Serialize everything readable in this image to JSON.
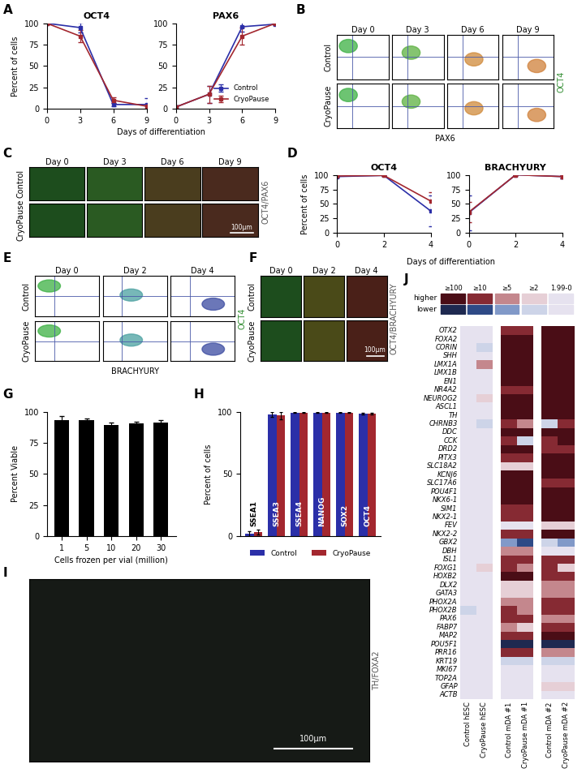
{
  "chart_data": [
    {
      "panel": "A",
      "type": "line",
      "xlabel": "Days of differentiation",
      "ylabel": "Percent of cells",
      "legend": "lower right",
      "series": [
        {
          "name": "Control",
          "color": "#2b2fa8",
          "marker": "square"
        },
        {
          "name": "CryoPause",
          "color": "#a3272f",
          "marker": "square"
        }
      ],
      "charts": [
        {
          "title": "OCT4",
          "x": [
            0,
            3,
            6,
            9
          ],
          "xlim": [
            0,
            9
          ],
          "xticks": [
            0,
            3,
            6,
            9
          ],
          "ylim": [
            0,
            100
          ],
          "yticks": [
            0,
            25,
            50,
            75,
            100
          ],
          "values": [
            [
              100,
              95,
              5,
              5
            ],
            [
              100,
              85,
              10,
              3
            ]
          ],
          "errors": [
            [
              1,
              6,
              2,
              7
            ],
            [
              1,
              7,
              3,
              3
            ]
          ]
        },
        {
          "title": "PAX6",
          "x": [
            0,
            3,
            6,
            9
          ],
          "xlim": [
            0,
            9
          ],
          "xticks": [
            0,
            3,
            6,
            9
          ],
          "ylim": [
            0,
            100
          ],
          "yticks": [
            0,
            25,
            50,
            75,
            100
          ],
          "values": [
            [
              2,
              17,
              96,
              99
            ],
            [
              2,
              17,
              85,
              100
            ]
          ],
          "errors": [
            [
              2,
              10,
              6,
              1
            ],
            [
              2,
              10,
              10,
              1
            ]
          ]
        }
      ]
    },
    {
      "panel": "B",
      "type": "flow_grid",
      "columns": [
        "Day 0",
        "Day 3",
        "Day 6",
        "Day 9"
      ],
      "rows": [
        "Control",
        "CryoPause"
      ],
      "xlabel": "PAX6",
      "ylabel": "OCT4",
      "colors": [
        "#3cb043",
        "#5cb040",
        "#d08a3a",
        "#d0803a"
      ]
    },
    {
      "panel": "C",
      "type": "image_grid",
      "columns": [
        "Day 0",
        "Day 3",
        "Day 6",
        "Day 9"
      ],
      "rows": [
        "Control",
        "CryoPause"
      ],
      "label": "OCT4/PAX6",
      "scale_bar": "100μm",
      "colors": [
        "#1d4d1d",
        "#2a5a22",
        "#4a3d1e",
        "#4a2a1e"
      ]
    },
    {
      "panel": "D",
      "type": "line",
      "xlabel": "Days of differentiation",
      "ylabel": "Percent of cells",
      "series": [
        {
          "color": "#2b2fa8",
          "marker": "square"
        },
        {
          "color": "#a3272f",
          "marker": "square"
        }
      ],
      "charts": [
        {
          "title": "OCT4",
          "x": [
            0,
            2,
            4
          ],
          "xlim": [
            0,
            4
          ],
          "xticks": [
            0,
            2,
            4
          ],
          "ylim": [
            0,
            100
          ],
          "yticks": [
            0,
            25,
            50,
            75,
            100
          ],
          "values": [
            [
              97,
              99,
              38
            ],
            [
              98,
              99,
              55
            ]
          ],
          "errors": [
            [
              2,
              1,
              27
            ],
            [
              2,
              1,
              15
            ]
          ]
        },
        {
          "title": "BRACHYURY",
          "x": [
            0,
            2,
            4
          ],
          "xlim": [
            0,
            4
          ],
          "xticks": [
            0,
            2,
            4
          ],
          "ylim": [
            0,
            100
          ],
          "yticks": [
            0,
            25,
            50,
            75,
            100
          ],
          "values": [
            [
              35,
              100,
              97
            ],
            [
              36,
              100,
              97
            ]
          ],
          "errors": [
            [
              30,
              0,
              3
            ],
            [
              18,
              0,
              3
            ]
          ]
        }
      ]
    },
    {
      "panel": "E",
      "type": "flow_grid",
      "columns": [
        "Day 0",
        "Day 2",
        "Day 4"
      ],
      "rows": [
        "Control",
        "CryoPause"
      ],
      "xlabel": "BRACHYURY",
      "ylabel": "OCT4",
      "colors": [
        "#3cb043",
        "#4aa0a0",
        "#3a4aa0"
      ]
    },
    {
      "panel": "F",
      "type": "image_grid",
      "columns": [
        "Day 0",
        "Day 2",
        "Day 4"
      ],
      "rows": [
        "Control",
        "CryoPause"
      ],
      "label": "OCT4/BRACHYURY",
      "scale_bar": "100μm",
      "colors": [
        "#1d4d1d",
        "#4a4a18",
        "#4a2018"
      ]
    },
    {
      "panel": "G",
      "type": "bar",
      "xlabel": "Cells frozen per vial (million)",
      "ylabel": "Percent Viable",
      "categories": [
        "1",
        "5",
        "10",
        "20",
        "30"
      ],
      "values": [
        93,
        93.5,
        89.5,
        90.5,
        91.5
      ],
      "errors": [
        3.5,
        1,
        2,
        1.5,
        2
      ],
      "color": "#000000",
      "ylim": [
        0,
        100
      ],
      "yticks": [
        0,
        25,
        50,
        75,
        100
      ]
    },
    {
      "panel": "H",
      "type": "bar",
      "ylabel": "Percent of cells",
      "categories": [
        "SSEA1",
        "SSEA3",
        "SSEA4",
        "NANOG",
        "SOX2",
        "OCT4"
      ],
      "series": [
        {
          "name": "Control",
          "color": "#2b2fa8",
          "values": [
            2,
            98,
            99.5,
            99.5,
            99.5,
            98.5
          ],
          "errors": [
            2,
            2,
            0.5,
            0.5,
            0.5,
            0.5
          ]
        },
        {
          "name": "CryoPause",
          "color": "#a3272f",
          "values": [
            3,
            97,
            99.5,
            99.5,
            99.5,
            98.5
          ],
          "errors": [
            2,
            3,
            0.5,
            0.5,
            0.5,
            0.5
          ]
        }
      ],
      "ylim": [
        0,
        100
      ],
      "yticks": [
        0,
        50,
        100
      ],
      "legend": "lower center",
      "tick_labels": "y"
    },
    {
      "panel": "I",
      "type": "image",
      "label": "TH/FOXA2",
      "scale_bar": "100μm",
      "color": "#161a16"
    },
    {
      "panel": "J",
      "type": "heatmap",
      "legend_rows": [
        "higher",
        "lower"
      ],
      "levels": [
        {
          "label": "≥100",
          "min": 100,
          "colors": [
            "#4a0d16",
            "#1e2950"
          ]
        },
        {
          "label": "≥10",
          "min": 10,
          "colors": [
            "#862a33",
            "#2e4a86"
          ]
        },
        {
          "label": "≥5",
          "min": 5,
          "colors": [
            "#c4878d",
            "#8199c8"
          ]
        },
        {
          "label": "≥2",
          "min": 2,
          "colors": [
            "#e6cfd6",
            "#cdd4e8"
          ]
        },
        {
          "label": "1.99-0",
          "min": 0,
          "colors": [
            "#e6e2ef",
            "#e6e2ef"
          ]
        }
      ],
      "columns": [
        "Control hESC",
        "CryoPause hESC",
        "Control mDA #1",
        "CryoPause mDA #1",
        "Control mDA #2",
        "CryoPause mDA #2"
      ],
      "rows": [
        "OTX2",
        "FOXA2",
        "CORIN",
        "SHH",
        "LMX1A",
        "LMX1B",
        "EN1",
        "NR4A2",
        "NEUROG2",
        "ASCL1",
        "TH",
        "CHRNB3",
        "DDC",
        "CCK",
        "DRD2",
        "PITX3",
        "SLC18A2",
        "KCNJ6",
        "SLC17A6",
        "POU4F1",
        "NKX6-1",
        "SIM1",
        "NKX2-1",
        "FEV",
        "NKX2-2",
        "GBX2",
        "DBH",
        "ISL1",
        "FOXG1",
        "HOXB2",
        "DLX2",
        "GATA3",
        "PHOX2A",
        "PHOX2B",
        "PAX6",
        "FABP7",
        "MAP2",
        "POU5F1",
        "PRR16",
        "KRT19",
        "MKI67",
        "TOP2A",
        "GFAP",
        "ACTB"
      ],
      "values": [
        [
          1,
          1,
          10,
          10,
          100,
          100
        ],
        [
          1,
          1,
          100,
          100,
          100,
          100
        ],
        [
          1,
          -2,
          100,
          100,
          100,
          100
        ],
        [
          1,
          1,
          100,
          100,
          100,
          100
        ],
        [
          1,
          5,
          100,
          100,
          100,
          100
        ],
        [
          1,
          1,
          100,
          100,
          100,
          100
        ],
        [
          1,
          1,
          100,
          100,
          100,
          100
        ],
        [
          1,
          1,
          10,
          10,
          100,
          100
        ],
        [
          1,
          2,
          100,
          100,
          100,
          100
        ],
        [
          1,
          1,
          100,
          100,
          100,
          100
        ],
        [
          1,
          1,
          100,
          100,
          100,
          100
        ],
        [
          1,
          -2,
          10,
          5,
          -2,
          10
        ],
        [
          1,
          1,
          100,
          100,
          100,
          100
        ],
        [
          1,
          1,
          10,
          -2,
          10,
          100
        ],
        [
          1,
          1,
          100,
          100,
          10,
          10
        ],
        [
          1,
          1,
          10,
          10,
          100,
          100
        ],
        [
          1,
          1,
          2,
          2,
          100,
          100
        ],
        [
          1,
          1,
          100,
          100,
          100,
          100
        ],
        [
          1,
          1,
          100,
          100,
          10,
          10
        ],
        [
          1,
          1,
          100,
          100,
          100,
          100
        ],
        [
          1,
          1,
          100,
          100,
          100,
          100
        ],
        [
          1,
          1,
          10,
          10,
          100,
          100
        ],
        [
          1,
          1,
          10,
          10,
          100,
          100
        ],
        [
          1,
          1,
          1,
          1,
          2,
          2
        ],
        [
          1,
          1,
          10,
          10,
          100,
          100
        ],
        [
          1,
          1,
          -5,
          -10,
          -2,
          -5
        ],
        [
          1,
          1,
          5,
          5,
          1,
          1
        ],
        [
          1,
          1,
          10,
          10,
          10,
          10
        ],
        [
          1,
          2,
          10,
          5,
          10,
          2
        ],
        [
          1,
          1,
          100,
          100,
          10,
          10
        ],
        [
          1,
          1,
          2,
          2,
          5,
          5
        ],
        [
          1,
          1,
          2,
          2,
          5,
          5
        ],
        [
          1,
          1,
          5,
          5,
          10,
          10
        ],
        [
          -2,
          1,
          10,
          5,
          10,
          10
        ],
        [
          1,
          1,
          10,
          10,
          5,
          5
        ],
        [
          1,
          1,
          5,
          2,
          10,
          10
        ],
        [
          1,
          1,
          10,
          10,
          100,
          100
        ],
        [
          1,
          1,
          -100,
          -100,
          -100,
          -100
        ],
        [
          1,
          1,
          10,
          10,
          5,
          5
        ],
        [
          1,
          1,
          -2,
          -2,
          -2,
          -2
        ],
        [
          1,
          1,
          1,
          1,
          1,
          1
        ],
        [
          1,
          1,
          1,
          1,
          1,
          1
        ],
        [
          1,
          1,
          1,
          1,
          2,
          2
        ],
        [
          1,
          1,
          1,
          1,
          1,
          1
        ]
      ]
    }
  ]
}
